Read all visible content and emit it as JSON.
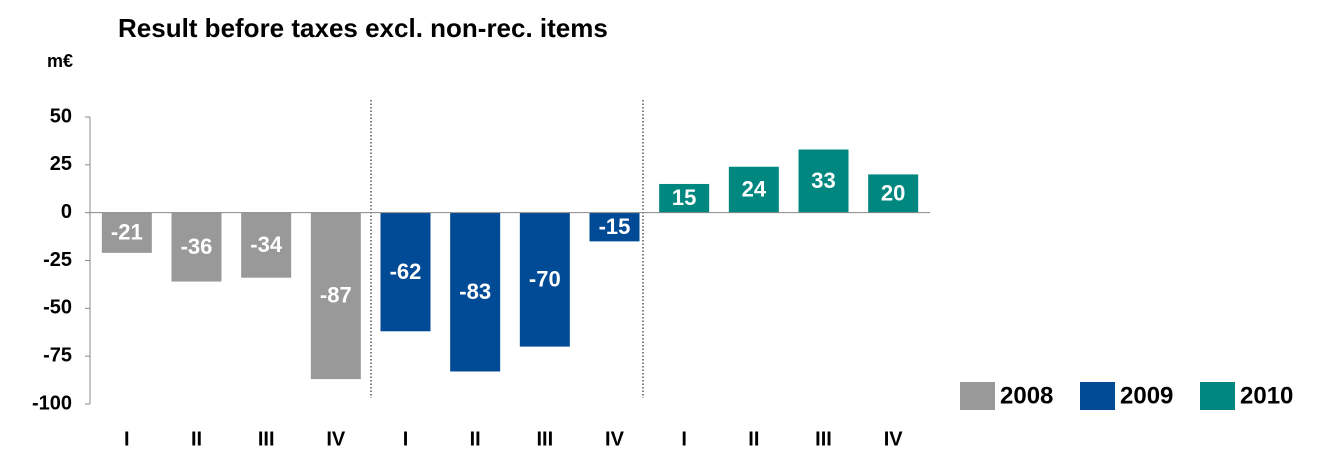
{
  "chart_data": {
    "type": "bar",
    "title": "Result before taxes excl. non-rec. items",
    "y_label": "m€",
    "categories": [
      "I",
      "II",
      "III",
      "IV",
      "I",
      "II",
      "III",
      "IV",
      "I",
      "II",
      "III",
      "IV"
    ],
    "series": [
      {
        "name": "2008",
        "color": "#999999",
        "values": [
          -21,
          -36,
          -34,
          -87,
          null,
          null,
          null,
          null,
          null,
          null,
          null,
          null
        ]
      },
      {
        "name": "2009",
        "color": "#004a96",
        "values": [
          null,
          null,
          null,
          null,
          -62,
          -83,
          -70,
          -15,
          null,
          null,
          null,
          null
        ]
      },
      {
        "name": "2010",
        "color": "#00877f",
        "values": [
          null,
          null,
          null,
          null,
          null,
          null,
          null,
          null,
          15,
          24,
          33,
          20
        ]
      }
    ],
    "ylim": [
      -100,
      50
    ],
    "yticks": [
      -100,
      -75,
      -50,
      -25,
      0,
      25,
      50
    ],
    "legend": "lower right"
  }
}
